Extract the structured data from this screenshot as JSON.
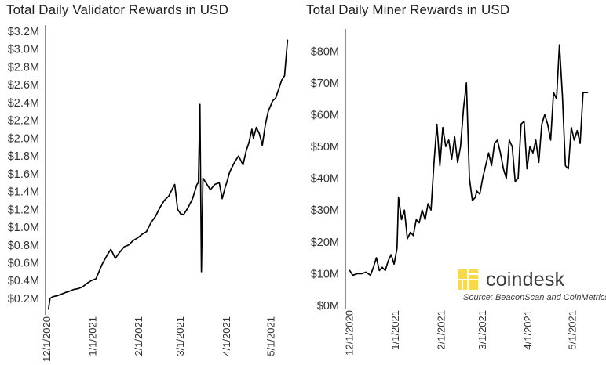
{
  "chart_data": [
    {
      "type": "line",
      "title": "Total Daily Validator Rewards in USD",
      "xlabel": "",
      "ylabel": "",
      "x_ticks": [
        "12/1/2020",
        "1/1/2021",
        "2/1/2021",
        "3/1/2021",
        "4/1/2021",
        "5/1/2021"
      ],
      "y_ticks": [
        "$0.2M",
        "$0.4M",
        "$0.6M",
        "$0.8M",
        "$1.0M",
        "$1.2M",
        "$1.4M",
        "$1.6M",
        "$1.8M",
        "$2.0M",
        "$2.2M",
        "$2.4M",
        "$2.6M",
        "$2.8M",
        "$3.0M",
        "$3.2M"
      ],
      "y_tick_values": [
        0.2,
        0.4,
        0.6,
        0.8,
        1.0,
        1.2,
        1.4,
        1.6,
        1.8,
        2.0,
        2.2,
        2.4,
        2.6,
        2.8,
        3.0,
        3.2
      ],
      "ylim": [
        0.05,
        3.2
      ],
      "xlim": [
        "2020-11-30",
        "2021-05-15"
      ],
      "grid": false,
      "series": [
        {
          "x": [
            "2020-12-02",
            "2020-12-03",
            "2020-12-05",
            "2020-12-08",
            "2020-12-11",
            "2020-12-14",
            "2020-12-16",
            "2020-12-19",
            "2020-12-22",
            "2020-12-25",
            "2020-12-28",
            "2020-12-31",
            "2021-01-03",
            "2021-01-05",
            "2021-01-07",
            "2021-01-09",
            "2021-01-11",
            "2021-01-13",
            "2021-01-16",
            "2021-01-19",
            "2021-01-22",
            "2021-01-25",
            "2021-01-28",
            "2021-01-31",
            "2021-02-03",
            "2021-02-06",
            "2021-02-09",
            "2021-02-12",
            "2021-02-15",
            "2021-02-18",
            "2021-02-21",
            "2021-02-24",
            "2021-02-25",
            "2021-02-27",
            "2021-03-01",
            "2021-03-03",
            "2021-03-06",
            "2021-03-09",
            "2021-03-12",
            "2021-03-13",
            "2021-03-14",
            "2021-03-15",
            "2021-03-16",
            "2021-03-18",
            "2021-03-21",
            "2021-03-24",
            "2021-03-27",
            "2021-03-29",
            "2021-03-31",
            "2021-04-01",
            "2021-04-03",
            "2021-04-06",
            "2021-04-09",
            "2021-04-12",
            "2021-04-14",
            "2021-04-16",
            "2021-04-18",
            "2021-04-19",
            "2021-04-21",
            "2021-04-23",
            "2021-04-25",
            "2021-04-27",
            "2021-04-29",
            "2021-05-02",
            "2021-05-04",
            "2021-05-06",
            "2021-05-08",
            "2021-05-10",
            "2021-05-11",
            "2021-05-12"
          ],
          "values": [
            0.08,
            0.2,
            0.22,
            0.23,
            0.25,
            0.27,
            0.28,
            0.3,
            0.31,
            0.33,
            0.37,
            0.4,
            0.42,
            0.5,
            0.58,
            0.64,
            0.7,
            0.75,
            0.65,
            0.72,
            0.78,
            0.8,
            0.85,
            0.88,
            0.92,
            0.95,
            1.05,
            1.12,
            1.22,
            1.3,
            1.35,
            1.45,
            1.48,
            1.2,
            1.15,
            1.14,
            1.22,
            1.32,
            1.48,
            1.5,
            2.38,
            0.5,
            1.55,
            1.5,
            1.42,
            1.48,
            1.5,
            1.32,
            1.45,
            1.5,
            1.62,
            1.72,
            1.8,
            1.7,
            1.85,
            1.95,
            2.1,
            2.0,
            2.12,
            2.05,
            1.92,
            2.15,
            2.3,
            2.42,
            2.45,
            2.55,
            2.65,
            2.7,
            2.9,
            3.1
          ]
        }
      ]
    },
    {
      "type": "line",
      "title": "Total Daily Miner Rewards in USD",
      "xlabel": "",
      "ylabel": "",
      "x_ticks": [
        "12/1/2020",
        "1/1/2021",
        "2/1/2021",
        "3/1/2021",
        "4/1/2021",
        "5/1/2021"
      ],
      "y_ticks": [
        "$0M",
        "$10M",
        "$20M",
        "$30M",
        "$40M",
        "$50M",
        "$60M",
        "$70M",
        "$80M"
      ],
      "y_tick_values": [
        0,
        10,
        20,
        30,
        40,
        50,
        60,
        70,
        80
      ],
      "ylim": [
        0,
        85
      ],
      "xlim": [
        "2020-11-28",
        "2021-05-15"
      ],
      "grid": false,
      "series": [
        {
          "x": [
            "2020-12-01",
            "2020-12-03",
            "2020-12-06",
            "2020-12-09",
            "2020-12-12",
            "2020-12-15",
            "2020-12-17",
            "2020-12-19",
            "2020-12-21",
            "2020-12-23",
            "2020-12-25",
            "2020-12-27",
            "2020-12-29",
            "2020-12-31",
            "2021-01-02",
            "2021-01-03",
            "2021-01-05",
            "2021-01-07",
            "2021-01-09",
            "2021-01-11",
            "2021-01-13",
            "2021-01-15",
            "2021-01-17",
            "2021-01-19",
            "2021-01-21",
            "2021-01-23",
            "2021-01-25",
            "2021-01-27",
            "2021-01-29",
            "2021-01-31",
            "2021-02-02",
            "2021-02-04",
            "2021-02-06",
            "2021-02-08",
            "2021-02-10",
            "2021-02-12",
            "2021-02-14",
            "2021-02-16",
            "2021-02-18",
            "2021-02-20",
            "2021-02-22",
            "2021-02-24",
            "2021-02-25",
            "2021-02-27",
            "2021-03-01",
            "2021-03-03",
            "2021-03-05",
            "2021-03-07",
            "2021-03-09",
            "2021-03-11",
            "2021-03-13",
            "2021-03-15",
            "2021-03-17",
            "2021-03-19",
            "2021-03-21",
            "2021-03-23",
            "2021-03-25",
            "2021-03-27",
            "2021-03-29",
            "2021-03-31",
            "2021-04-02",
            "2021-04-04",
            "2021-04-06",
            "2021-04-08",
            "2021-04-10",
            "2021-04-12",
            "2021-04-14",
            "2021-04-16",
            "2021-04-18",
            "2021-04-20",
            "2021-04-22",
            "2021-04-24",
            "2021-04-26",
            "2021-04-28",
            "2021-04-30",
            "2021-05-02",
            "2021-05-04",
            "2021-05-06",
            "2021-05-08",
            "2021-05-10",
            "2021-05-11"
          ],
          "values": [
            11,
            9.5,
            10,
            10,
            10.5,
            9.5,
            12,
            15,
            11,
            12,
            11,
            14,
            16,
            13,
            18,
            34,
            27,
            30,
            21,
            23,
            22,
            27,
            26,
            30,
            27,
            32,
            30,
            45,
            57,
            44,
            56,
            50,
            52,
            46,
            53,
            45,
            50,
            62,
            70,
            40,
            33,
            34,
            36,
            35,
            40,
            44,
            48,
            44,
            51,
            52,
            48,
            43,
            40,
            52,
            50,
            39,
            40,
            57,
            58,
            43,
            50,
            48,
            52,
            45,
            57,
            60,
            57,
            52,
            67,
            65,
            82,
            66,
            44,
            43,
            56,
            52,
            55,
            51,
            67,
            67,
            67
          ]
        }
      ]
    }
  ],
  "branding": {
    "logo_text": "coindesk",
    "logo_icon": "coindesk-mark-icon",
    "logo_color": "#f7d94c",
    "source_text": "Source: BeaconScan and CoinMetrics"
  },
  "colors": {
    "line": "#000000",
    "text": "#333333",
    "axis": "#222222"
  }
}
